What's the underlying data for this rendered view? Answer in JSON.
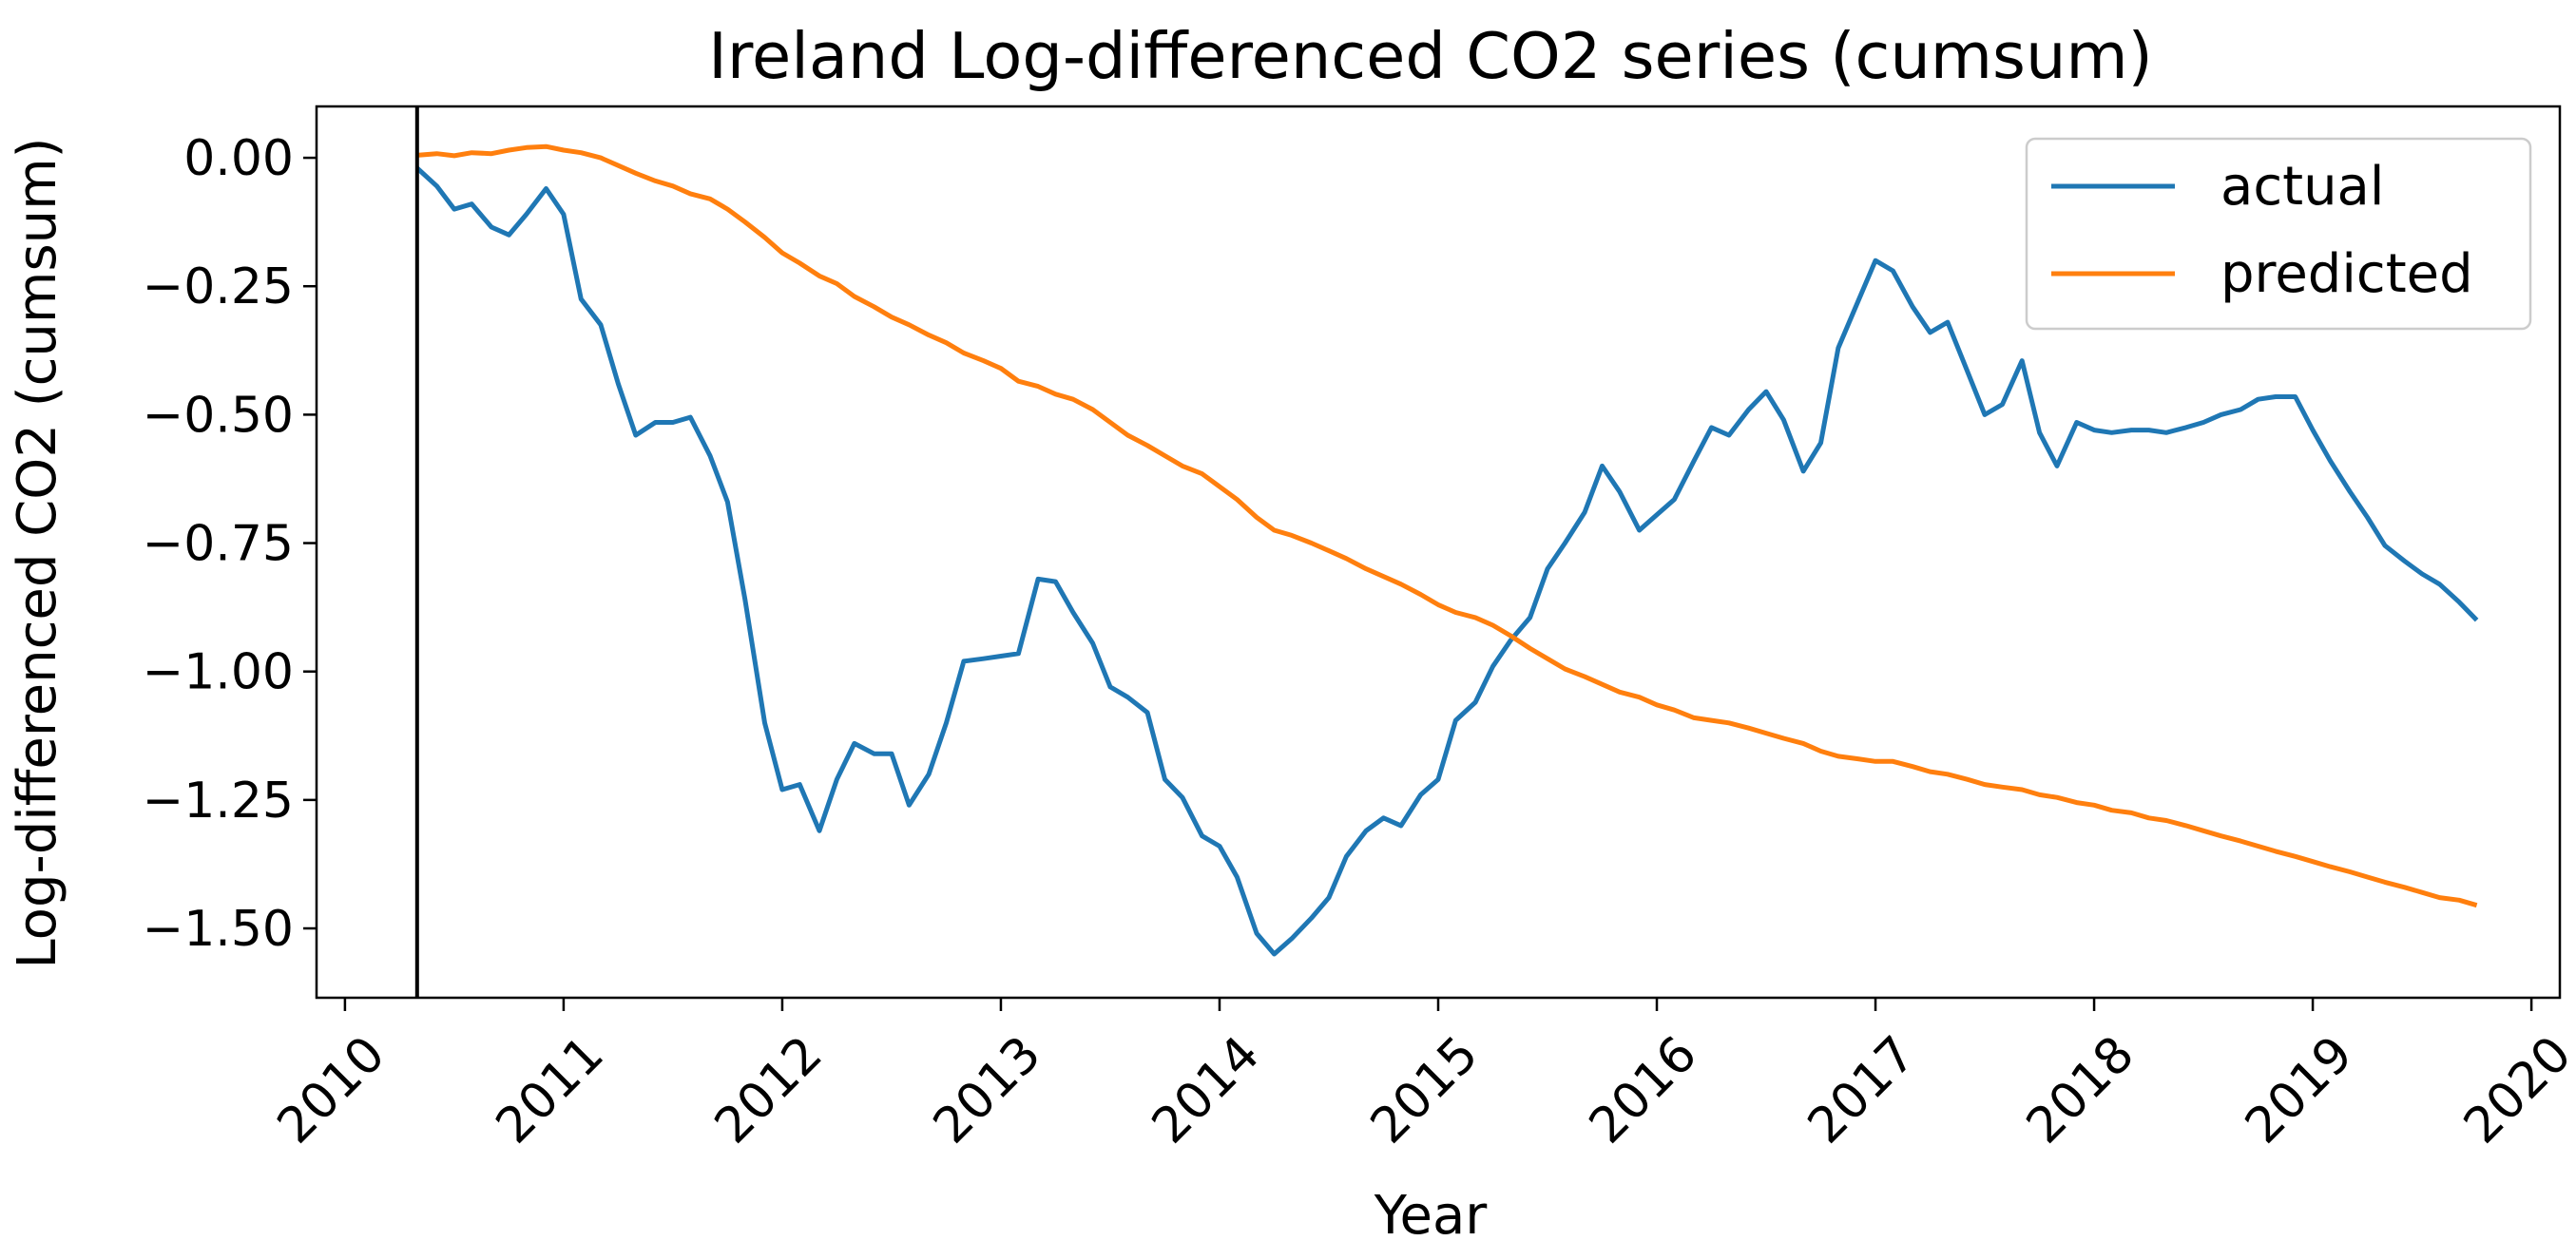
{
  "chart_data": {
    "type": "line",
    "title": "Ireland Log-differenced CO2 series (cumsum)",
    "xlabel": "Year",
    "ylabel": "Log-differenced CO2 (cumsum)",
    "x_ticks": [
      "2010",
      "2011",
      "2012",
      "2013",
      "2014",
      "2015",
      "2016",
      "2017",
      "2018",
      "2019",
      "2020"
    ],
    "y_ticks": [
      "0.00",
      "−0.25",
      "−0.50",
      "−0.75",
      "−1.00",
      "−1.25",
      "−1.50"
    ],
    "y_tick_values": [
      0.0,
      -0.25,
      -0.5,
      -0.75,
      -1.0,
      -1.25,
      -1.5
    ],
    "x_range": [
      2009.87,
      2020.13
    ],
    "y_range": [
      -1.635,
      0.1
    ],
    "grid": false,
    "legend_position": "top-right",
    "vertical_line_x": 2010.33,
    "series": [
      {
        "name": "actual",
        "color": "#1f77b4",
        "points": [
          [
            2010.33,
            -0.02
          ],
          [
            2010.42,
            -0.055
          ],
          [
            2010.5,
            -0.1
          ],
          [
            2010.58,
            -0.09
          ],
          [
            2010.67,
            -0.135
          ],
          [
            2010.75,
            -0.15
          ],
          [
            2010.83,
            -0.11
          ],
          [
            2010.92,
            -0.06
          ],
          [
            2011.0,
            -0.11
          ],
          [
            2011.08,
            -0.275
          ],
          [
            2011.17,
            -0.325
          ],
          [
            2011.25,
            -0.44
          ],
          [
            2011.33,
            -0.54
          ],
          [
            2011.42,
            -0.515
          ],
          [
            2011.5,
            -0.515
          ],
          [
            2011.58,
            -0.505
          ],
          [
            2011.67,
            -0.58
          ],
          [
            2011.75,
            -0.67
          ],
          [
            2011.83,
            -0.86
          ],
          [
            2011.92,
            -1.1
          ],
          [
            2012.0,
            -1.23
          ],
          [
            2012.08,
            -1.22
          ],
          [
            2012.17,
            -1.31
          ],
          [
            2012.25,
            -1.21
          ],
          [
            2012.33,
            -1.14
          ],
          [
            2012.42,
            -1.16
          ],
          [
            2012.5,
            -1.16
          ],
          [
            2012.58,
            -1.26
          ],
          [
            2012.67,
            -1.2
          ],
          [
            2012.75,
            -1.1
          ],
          [
            2012.83,
            -0.98
          ],
          [
            2012.92,
            -0.975
          ],
          [
            2013.0,
            -0.97
          ],
          [
            2013.08,
            -0.965
          ],
          [
            2013.17,
            -0.82
          ],
          [
            2013.25,
            -0.825
          ],
          [
            2013.33,
            -0.885
          ],
          [
            2013.42,
            -0.945
          ],
          [
            2013.5,
            -1.03
          ],
          [
            2013.58,
            -1.05
          ],
          [
            2013.67,
            -1.08
          ],
          [
            2013.75,
            -1.21
          ],
          [
            2013.83,
            -1.245
          ],
          [
            2013.92,
            -1.32
          ],
          [
            2014.0,
            -1.34
          ],
          [
            2014.08,
            -1.4
          ],
          [
            2014.17,
            -1.51
          ],
          [
            2014.25,
            -1.55
          ],
          [
            2014.33,
            -1.52
          ],
          [
            2014.42,
            -1.48
          ],
          [
            2014.5,
            -1.44
          ],
          [
            2014.58,
            -1.36
          ],
          [
            2014.67,
            -1.31
          ],
          [
            2014.75,
            -1.285
          ],
          [
            2014.83,
            -1.3
          ],
          [
            2014.92,
            -1.24
          ],
          [
            2015.0,
            -1.21
          ],
          [
            2015.08,
            -1.095
          ],
          [
            2015.17,
            -1.06
          ],
          [
            2015.25,
            -0.99
          ],
          [
            2015.33,
            -0.94
          ],
          [
            2015.42,
            -0.895
          ],
          [
            2015.5,
            -0.8
          ],
          [
            2015.58,
            -0.75
          ],
          [
            2015.67,
            -0.69
          ],
          [
            2015.75,
            -0.6
          ],
          [
            2015.83,
            -0.65
          ],
          [
            2015.92,
            -0.725
          ],
          [
            2016.0,
            -0.695
          ],
          [
            2016.08,
            -0.665
          ],
          [
            2016.17,
            -0.59
          ],
          [
            2016.25,
            -0.525
          ],
          [
            2016.33,
            -0.54
          ],
          [
            2016.42,
            -0.49
          ],
          [
            2016.5,
            -0.455
          ],
          [
            2016.58,
            -0.51
          ],
          [
            2016.67,
            -0.61
          ],
          [
            2016.75,
            -0.555
          ],
          [
            2016.83,
            -0.37
          ],
          [
            2016.92,
            -0.28
          ],
          [
            2017.0,
            -0.2
          ],
          [
            2017.08,
            -0.22
          ],
          [
            2017.17,
            -0.29
          ],
          [
            2017.25,
            -0.34
          ],
          [
            2017.33,
            -0.32
          ],
          [
            2017.42,
            -0.415
          ],
          [
            2017.5,
            -0.5
          ],
          [
            2017.58,
            -0.48
          ],
          [
            2017.67,
            -0.395
          ],
          [
            2017.75,
            -0.535
          ],
          [
            2017.83,
            -0.6
          ],
          [
            2017.92,
            -0.515
          ],
          [
            2018.0,
            -0.53
          ],
          [
            2018.08,
            -0.535
          ],
          [
            2018.17,
            -0.53
          ],
          [
            2018.25,
            -0.53
          ],
          [
            2018.33,
            -0.535
          ],
          [
            2018.42,
            -0.525
          ],
          [
            2018.5,
            -0.515
          ],
          [
            2018.58,
            -0.5
          ],
          [
            2018.67,
            -0.49
          ],
          [
            2018.75,
            -0.47
          ],
          [
            2018.83,
            -0.465
          ],
          [
            2018.92,
            -0.465
          ],
          [
            2019.0,
            -0.53
          ],
          [
            2019.08,
            -0.59
          ],
          [
            2019.17,
            -0.65
          ],
          [
            2019.25,
            -0.7
          ],
          [
            2019.33,
            -0.755
          ],
          [
            2019.42,
            -0.785
          ],
          [
            2019.5,
            -0.81
          ],
          [
            2019.58,
            -0.83
          ],
          [
            2019.67,
            -0.865
          ],
          [
            2019.75,
            -0.9
          ]
        ]
      },
      {
        "name": "predicted",
        "color": "#ff7f0e",
        "points": [
          [
            2010.33,
            0.005
          ],
          [
            2010.42,
            0.008
          ],
          [
            2010.5,
            0.004
          ],
          [
            2010.58,
            0.01
          ],
          [
            2010.67,
            0.008
          ],
          [
            2010.75,
            0.015
          ],
          [
            2010.83,
            0.02
          ],
          [
            2010.92,
            0.022
          ],
          [
            2011.0,
            0.015
          ],
          [
            2011.08,
            0.01
          ],
          [
            2011.17,
            0.0
          ],
          [
            2011.25,
            -0.015
          ],
          [
            2011.33,
            -0.03
          ],
          [
            2011.42,
            -0.045
          ],
          [
            2011.5,
            -0.055
          ],
          [
            2011.58,
            -0.07
          ],
          [
            2011.67,
            -0.08
          ],
          [
            2011.75,
            -0.1
          ],
          [
            2011.83,
            -0.125
          ],
          [
            2011.92,
            -0.155
          ],
          [
            2012.0,
            -0.185
          ],
          [
            2012.08,
            -0.205
          ],
          [
            2012.17,
            -0.23
          ],
          [
            2012.25,
            -0.245
          ],
          [
            2012.33,
            -0.27
          ],
          [
            2012.42,
            -0.29
          ],
          [
            2012.5,
            -0.31
          ],
          [
            2012.58,
            -0.325
          ],
          [
            2012.67,
            -0.345
          ],
          [
            2012.75,
            -0.36
          ],
          [
            2012.83,
            -0.38
          ],
          [
            2012.92,
            -0.395
          ],
          [
            2013.0,
            -0.41
          ],
          [
            2013.08,
            -0.435
          ],
          [
            2013.17,
            -0.445
          ],
          [
            2013.25,
            -0.46
          ],
          [
            2013.33,
            -0.47
          ],
          [
            2013.42,
            -0.49
          ],
          [
            2013.5,
            -0.515
          ],
          [
            2013.58,
            -0.54
          ],
          [
            2013.67,
            -0.56
          ],
          [
            2013.75,
            -0.58
          ],
          [
            2013.83,
            -0.6
          ],
          [
            2013.92,
            -0.615
          ],
          [
            2014.0,
            -0.64
          ],
          [
            2014.08,
            -0.665
          ],
          [
            2014.17,
            -0.7
          ],
          [
            2014.25,
            -0.725
          ],
          [
            2014.33,
            -0.735
          ],
          [
            2014.42,
            -0.75
          ],
          [
            2014.5,
            -0.765
          ],
          [
            2014.58,
            -0.78
          ],
          [
            2014.67,
            -0.8
          ],
          [
            2014.75,
            -0.815
          ],
          [
            2014.83,
            -0.83
          ],
          [
            2014.92,
            -0.85
          ],
          [
            2015.0,
            -0.87
          ],
          [
            2015.08,
            -0.885
          ],
          [
            2015.17,
            -0.895
          ],
          [
            2015.25,
            -0.91
          ],
          [
            2015.33,
            -0.93
          ],
          [
            2015.42,
            -0.955
          ],
          [
            2015.5,
            -0.975
          ],
          [
            2015.58,
            -0.995
          ],
          [
            2015.67,
            -1.01
          ],
          [
            2015.75,
            -1.025
          ],
          [
            2015.83,
            -1.04
          ],
          [
            2015.92,
            -1.05
          ],
          [
            2016.0,
            -1.065
          ],
          [
            2016.08,
            -1.075
          ],
          [
            2016.17,
            -1.09
          ],
          [
            2016.25,
            -1.095
          ],
          [
            2016.33,
            -1.1
          ],
          [
            2016.42,
            -1.11
          ],
          [
            2016.5,
            -1.12
          ],
          [
            2016.58,
            -1.13
          ],
          [
            2016.67,
            -1.14
          ],
          [
            2016.75,
            -1.155
          ],
          [
            2016.83,
            -1.165
          ],
          [
            2016.92,
            -1.17
          ],
          [
            2017.0,
            -1.175
          ],
          [
            2017.08,
            -1.175
          ],
          [
            2017.17,
            -1.185
          ],
          [
            2017.25,
            -1.195
          ],
          [
            2017.33,
            -1.2
          ],
          [
            2017.42,
            -1.21
          ],
          [
            2017.5,
            -1.22
          ],
          [
            2017.58,
            -1.225
          ],
          [
            2017.67,
            -1.23
          ],
          [
            2017.75,
            -1.24
          ],
          [
            2017.83,
            -1.245
          ],
          [
            2017.92,
            -1.255
          ],
          [
            2018.0,
            -1.26
          ],
          [
            2018.08,
            -1.27
          ],
          [
            2018.17,
            -1.275
          ],
          [
            2018.25,
            -1.285
          ],
          [
            2018.33,
            -1.29
          ],
          [
            2018.42,
            -1.3
          ],
          [
            2018.5,
            -1.31
          ],
          [
            2018.58,
            -1.32
          ],
          [
            2018.67,
            -1.33
          ],
          [
            2018.75,
            -1.34
          ],
          [
            2018.83,
            -1.35
          ],
          [
            2018.92,
            -1.36
          ],
          [
            2019.0,
            -1.37
          ],
          [
            2019.08,
            -1.38
          ],
          [
            2019.17,
            -1.39
          ],
          [
            2019.25,
            -1.4
          ],
          [
            2019.33,
            -1.41
          ],
          [
            2019.42,
            -1.42
          ],
          [
            2019.5,
            -1.43
          ],
          [
            2019.58,
            -1.44
          ],
          [
            2019.67,
            -1.445
          ],
          [
            2019.75,
            -1.455
          ]
        ]
      }
    ]
  }
}
